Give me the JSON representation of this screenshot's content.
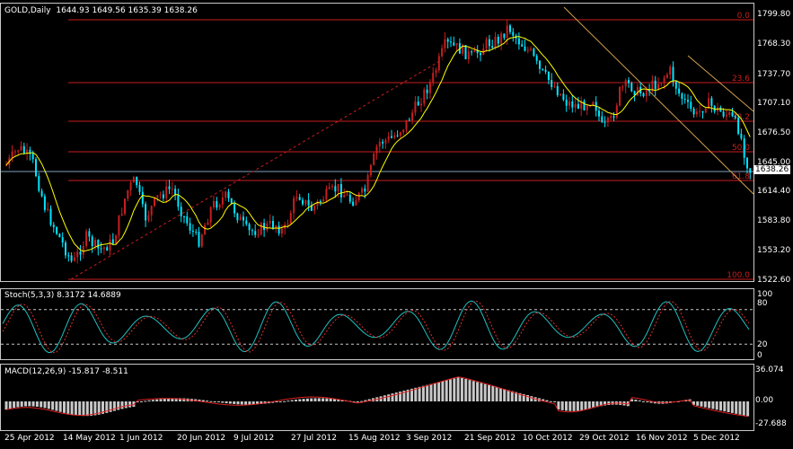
{
  "header": {
    "symbol": "GOLD,Daily",
    "ohlc": "1644.93 1649.56 1635.39 1638.26"
  },
  "price_axis": {
    "ticks": [
      "1799.80",
      "1768.30",
      "1737.70",
      "1707.10",
      "1676.50",
      "1645.00",
      "1614.40",
      "1583.80",
      "1553.20",
      "1522.60"
    ],
    "current_price": "1638.26"
  },
  "fibonacci": {
    "levels": [
      "0.0",
      "23.6",
      "38.2",
      "50.0",
      "61.8",
      "100.0"
    ]
  },
  "stochastic": {
    "title": "Stoch(5,3,3) 8.3172 14.6889",
    "scale": [
      "100",
      "80",
      "20",
      "0"
    ]
  },
  "macd": {
    "title": "MACD(12,26,9) -15.817 -8.511",
    "scale": [
      "36.074",
      "0.00",
      "-27.688"
    ]
  },
  "date_axis": [
    "25 Apr 2012",
    "14 May 2012",
    "1 Jun 2012",
    "20 Jun 2012",
    "9 Jul 2012",
    "27 Jul 2012",
    "15 Aug 2012",
    "3 Sep 2012",
    "21 Sep 2012",
    "10 Oct 2012",
    "29 Oct 2012",
    "16 Nov 2012",
    "5 Dec 2012"
  ],
  "colors": {
    "background": "#000000",
    "bull_candle": "#c81e1e",
    "bear_candle": "#00e5ff",
    "ma_line": "#ffff00",
    "fib_line": "#c81e1e",
    "trend_line": "#d2a050",
    "grid_border": "#c8c8c8"
  }
}
